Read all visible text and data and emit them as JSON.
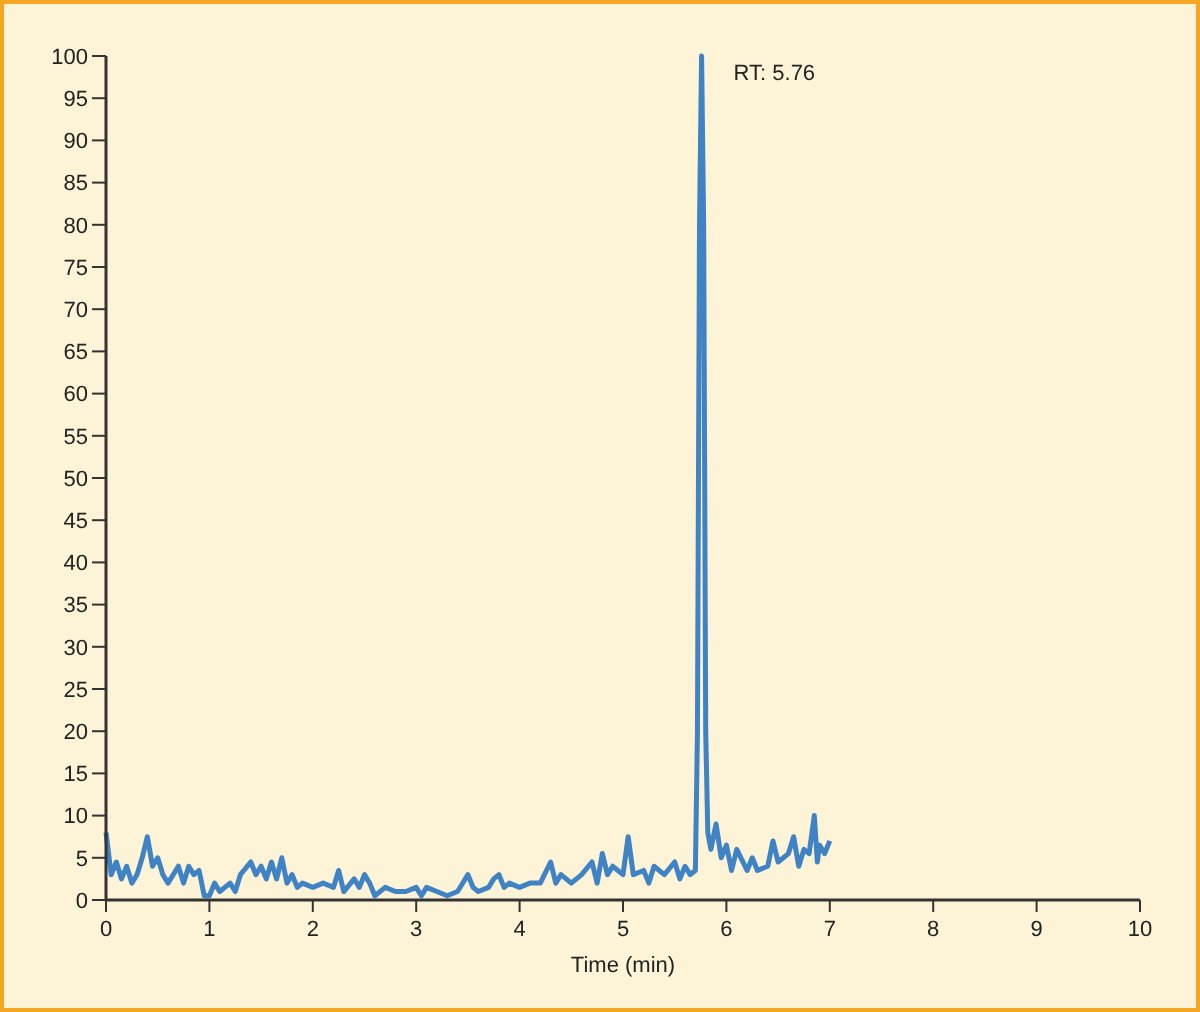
{
  "chart_data": {
    "type": "line",
    "xlabel": "Time (min)",
    "xlim": [
      0,
      10
    ],
    "xticks": [
      0,
      1,
      2,
      3,
      4,
      5,
      6,
      7,
      8,
      9,
      10
    ],
    "ylim": [
      0,
      100
    ],
    "yticks": [
      0,
      5,
      10,
      15,
      20,
      25,
      30,
      35,
      40,
      45,
      50,
      55,
      60,
      65,
      70,
      75,
      80,
      85,
      90,
      95,
      100
    ],
    "grid": false,
    "marker": "none",
    "line_style": "solid",
    "annotations": [
      {
        "text": "RT: 5.76",
        "x": 5.76,
        "y": 100
      }
    ],
    "series": [
      {
        "color": "#3f83c4",
        "x": [
          0,
          0.05,
          0.1,
          0.15,
          0.2,
          0.25,
          0.3,
          0.35,
          0.4,
          0.45,
          0.5,
          0.55,
          0.6,
          0.7,
          0.75,
          0.8,
          0.85,
          0.9,
          0.95,
          1.0,
          1.05,
          1.1,
          1.2,
          1.25,
          1.3,
          1.4,
          1.45,
          1.5,
          1.55,
          1.6,
          1.65,
          1.7,
          1.75,
          1.8,
          1.85,
          1.9,
          2.0,
          2.1,
          2.2,
          2.25,
          2.3,
          2.4,
          2.45,
          2.5,
          2.55,
          2.6,
          2.7,
          2.8,
          2.9,
          3.0,
          3.05,
          3.1,
          3.2,
          3.3,
          3.4,
          3.5,
          3.55,
          3.6,
          3.7,
          3.75,
          3.8,
          3.85,
          3.9,
          4.0,
          4.1,
          4.2,
          4.3,
          4.35,
          4.4,
          4.5,
          4.6,
          4.7,
          4.75,
          4.8,
          4.85,
          4.9,
          5.0,
          5.05,
          5.1,
          5.2,
          5.25,
          5.3,
          5.4,
          5.5,
          5.55,
          5.6,
          5.65,
          5.7,
          5.72,
          5.74,
          5.76,
          5.78,
          5.8,
          5.82,
          5.85,
          5.9,
          5.95,
          6.0,
          6.05,
          6.1,
          6.2,
          6.25,
          6.3,
          6.4,
          6.45,
          6.5,
          6.6,
          6.65,
          6.7,
          6.75,
          6.8,
          6.85,
          6.88,
          6.9,
          6.95,
          7.0
        ],
        "values": [
          8,
          3,
          4.5,
          2.5,
          4,
          2,
          3,
          5,
          7.5,
          4,
          5,
          3,
          2,
          4,
          2,
          4,
          3,
          3.5,
          0.5,
          0.5,
          2,
          1,
          2,
          1,
          3,
          4.5,
          3,
          4,
          2.5,
          4.5,
          2.5,
          5,
          2,
          3,
          1.5,
          2,
          1.5,
          2,
          1.5,
          3.5,
          1,
          2.5,
          1.5,
          3,
          2,
          0.5,
          1.5,
          1,
          1,
          1.5,
          0.5,
          1.5,
          1,
          0.5,
          1,
          3,
          1.5,
          1,
          1.5,
          2.5,
          3,
          1.5,
          2,
          1.5,
          2,
          2,
          4.5,
          2,
          3,
          2,
          3,
          4.5,
          2,
          5.5,
          3,
          4,
          3,
          7.5,
          3,
          3.5,
          2,
          4,
          3,
          4.5,
          2.5,
          4,
          3,
          3.5,
          20,
          80,
          100,
          80,
          20,
          8,
          6,
          9,
          5,
          6.5,
          3.5,
          6,
          3.5,
          5,
          3.5,
          4,
          7,
          4.5,
          5.5,
          7.5,
          4,
          6,
          5.5,
          10,
          4.5,
          6.5,
          5.5,
          7
        ]
      }
    ]
  }
}
